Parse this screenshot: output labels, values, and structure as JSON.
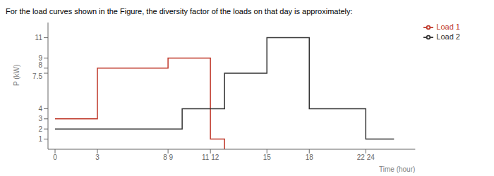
{
  "chart_data": {
    "type": "line",
    "title": "For the load curves shown in the Figure, the diversity factor of the loads on that day is approximately:",
    "y_label": "P (kW)",
    "x_label": "Time (hour)",
    "xlim": [
      -0.5,
      25.5
    ],
    "ylim": [
      0,
      12.5
    ],
    "xticks": [
      0,
      3,
      {
        "value": 8,
        "label": "8 9"
      },
      {
        "value": 11,
        "label": "11 12"
      },
      15,
      18,
      {
        "value": 22,
        "label": "22 24"
      }
    ],
    "yticks": [
      1,
      2,
      3,
      4,
      7.5,
      8,
      9,
      11
    ],
    "grid": false,
    "legend": "right",
    "series": [
      {
        "name": "Load 1",
        "color": "#c0392b",
        "x": [
          0,
          3,
          3,
          8,
          8,
          9,
          9,
          11,
          11,
          12,
          12
        ],
        "values": [
          3,
          3,
          8,
          8,
          9,
          9,
          9,
          9,
          1,
          1,
          0
        ]
      },
      {
        "name": "Load 2",
        "color": "#333333",
        "x": [
          0,
          9,
          9,
          12,
          12,
          15,
          15,
          18,
          18,
          22,
          22,
          24
        ],
        "values": [
          2,
          2,
          4,
          4,
          7.5,
          7.5,
          11,
          11,
          4,
          4,
          1,
          1
        ]
      }
    ]
  }
}
